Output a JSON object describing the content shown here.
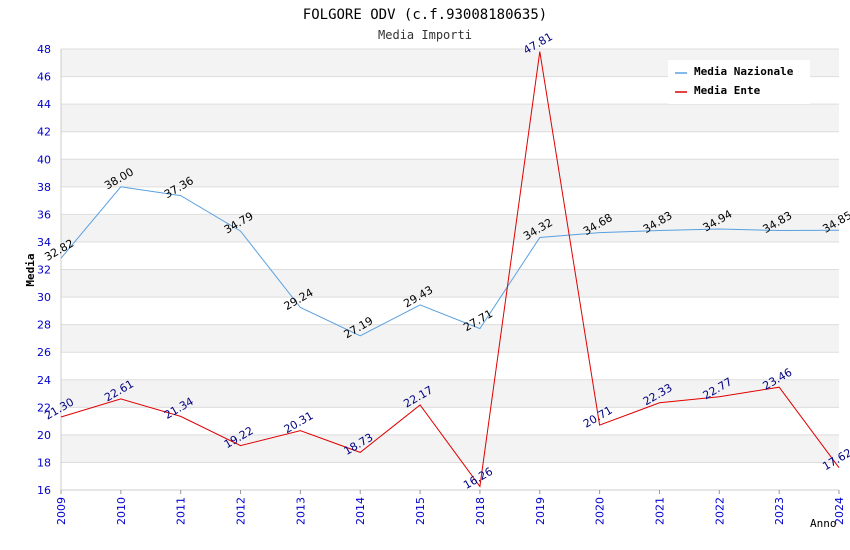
{
  "chart_data": {
    "type": "line",
    "title": "FOLGORE ODV (c.f.93008180635)",
    "subtitle": "Media Importi",
    "xlabel": "Anno",
    "ylabel": "Media",
    "categories": [
      "2009",
      "2010",
      "2011",
      "2012",
      "2013",
      "2014",
      "2015",
      "2018",
      "2019",
      "2020",
      "2021",
      "2022",
      "2023",
      "2024"
    ],
    "ylim": [
      16,
      48
    ],
    "yticks": [
      16,
      18,
      20,
      22,
      24,
      26,
      28,
      30,
      32,
      34,
      36,
      38,
      40,
      42,
      44,
      46,
      48
    ],
    "grid": true,
    "legend_position": "top-right",
    "series": [
      {
        "name": "Media Nazionale",
        "color": "#5aa0e0",
        "values": [
          32.82,
          38.0,
          37.36,
          34.79,
          29.24,
          27.19,
          29.43,
          27.71,
          34.32,
          34.68,
          34.83,
          34.94,
          34.83,
          34.85
        ],
        "labels": [
          "32.82",
          "38.00",
          "37.36",
          "34.79",
          "29.24",
          "27.19",
          "29.43",
          "27.71",
          "34.32",
          "34.68",
          "34.83",
          "34.94",
          "34.83",
          "34.85"
        ]
      },
      {
        "name": "Media Ente",
        "color": "#e00000",
        "values": [
          21.3,
          22.61,
          21.34,
          19.22,
          20.31,
          18.73,
          22.17,
          16.26,
          47.81,
          20.71,
          22.33,
          22.77,
          23.46,
          17.62
        ],
        "labels": [
          "21.30",
          "22.61",
          "21.34",
          "19.22",
          "20.31",
          "18.73",
          "22.17",
          "16.26",
          "47.81",
          "20.71",
          "22.33",
          "22.77",
          "23.46",
          "17.62"
        ]
      }
    ]
  }
}
